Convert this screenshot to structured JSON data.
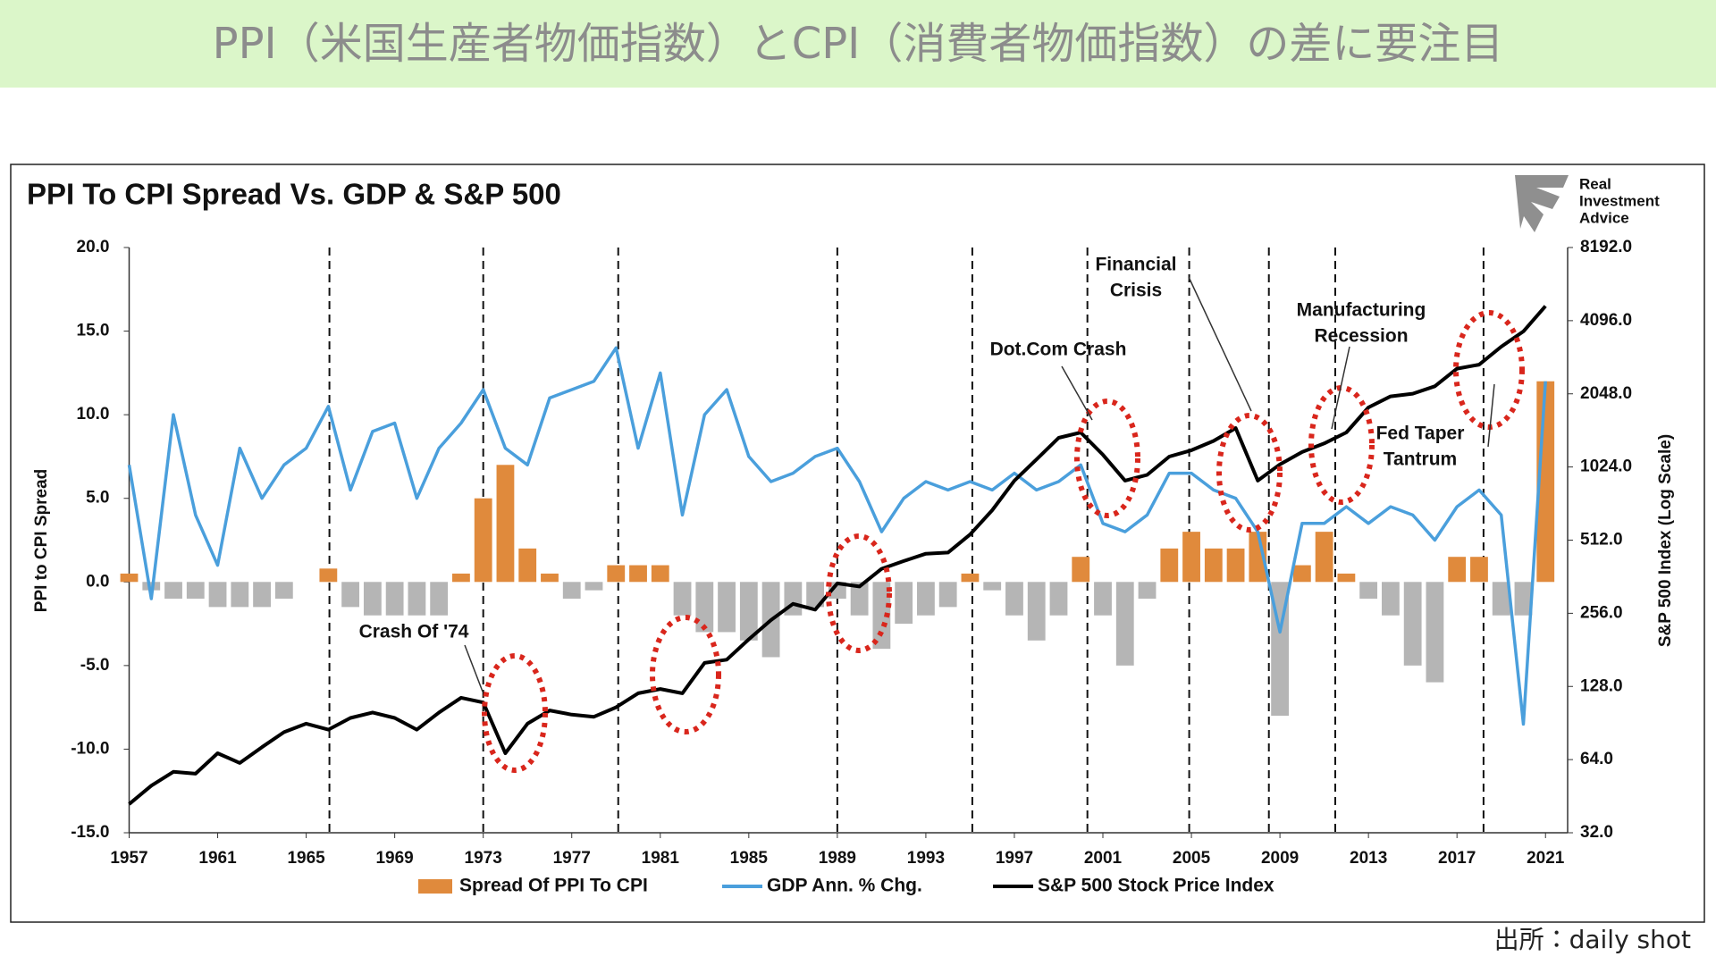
{
  "header": {
    "title": "PPI（米国生産者物価指数）とCPI（消費者物価指数）の差に要注目"
  },
  "source": "出所：daily shot",
  "logo": {
    "lines": [
      "Real",
      "Investment",
      "Advice"
    ]
  },
  "chart_data": {
    "type": "combo",
    "title": "PPI To CPI Spread Vs. GDP & S&P 500",
    "y_label": "PPI to CPI Spread",
    "y2_label": "S&P 500 Index (Log Scale)",
    "x": [
      1957,
      1958,
      1959,
      1960,
      1961,
      1962,
      1963,
      1964,
      1965,
      1966,
      1967,
      1968,
      1969,
      1970,
      1971,
      1972,
      1973,
      1974,
      1975,
      1976,
      1977,
      1978,
      1979,
      1980,
      1981,
      1982,
      1983,
      1984,
      1985,
      1986,
      1987,
      1988,
      1989,
      1990,
      1991,
      1992,
      1993,
      1994,
      1995,
      1996,
      1997,
      1998,
      1999,
      2000,
      2001,
      2002,
      2003,
      2004,
      2005,
      2006,
      2007,
      2008,
      2009,
      2010,
      2011,
      2012,
      2013,
      2014,
      2015,
      2016,
      2017,
      2018,
      2019,
      2020,
      2021
    ],
    "series": [
      {
        "name": "Spread Of PPI To CPI",
        "kind": "bar",
        "color": "#e08a3c",
        "negative_color": "#b5b5b5",
        "values": [
          0.5,
          -0.5,
          -1,
          -1,
          -1.5,
          -1.5,
          -1.5,
          -1,
          0,
          0.8,
          -1.5,
          -2,
          -2,
          -2,
          -2,
          0.5,
          5,
          7,
          2,
          0.5,
          -1,
          -0.5,
          1,
          1,
          1,
          -2,
          -3,
          -3,
          -3.5,
          -4.5,
          -2,
          -1.5,
          -1,
          -2,
          -4,
          -2.5,
          -2,
          -1.5,
          0.5,
          -0.5,
          -2,
          -3.5,
          -2,
          1.5,
          -2,
          -5,
          -1,
          2,
          3,
          2,
          2,
          3,
          -8,
          1,
          3,
          0.5,
          -1,
          -2,
          -5,
          -6,
          1.5,
          1.5,
          -2,
          -2,
          12
        ]
      },
      {
        "name": "GDP Ann. % Chg.",
        "kind": "line",
        "color": "#4a9fdc",
        "values": [
          7,
          -1,
          10,
          4,
          1,
          8,
          5,
          7,
          8,
          10.5,
          5.5,
          9,
          9.5,
          5,
          8,
          9.5,
          11.5,
          8,
          7,
          11,
          11.5,
          12,
          14,
          8,
          12.5,
          4,
          10,
          11.5,
          7.5,
          6,
          6.5,
          7.5,
          8,
          6,
          3,
          5,
          6,
          5.5,
          6,
          5.5,
          6.5,
          5.5,
          6,
          7,
          3.5,
          3,
          4,
          6.5,
          6.5,
          5.5,
          5,
          3,
          -3,
          3.5,
          3.5,
          4.5,
          3.5,
          4.5,
          4,
          2.5,
          4.5,
          5.5,
          4,
          -8.5,
          12
        ]
      },
      {
        "name": "S&P 500 Stock Price Index",
        "kind": "line",
        "axis": "y2",
        "color": "#000000",
        "values": [
          42,
          50,
          57,
          56,
          68,
          62,
          72,
          83,
          90,
          85,
          95,
          100,
          95,
          85,
          100,
          115,
          110,
          68,
          90,
          102,
          98,
          96,
          105,
          120,
          125,
          120,
          160,
          165,
          200,
          240,
          280,
          265,
          340,
          330,
          390,
          420,
          450,
          455,
          540,
          680,
          900,
          1100,
          1350,
          1420,
          1150,
          900,
          950,
          1130,
          1200,
          1310,
          1480,
          900,
          1050,
          1180,
          1280,
          1420,
          1800,
          2000,
          2050,
          2200,
          2600,
          2700,
          3200,
          3700,
          4700
        ]
      }
    ],
    "xlim": [
      1957,
      2022
    ],
    "xticks": [
      1957,
      1961,
      1965,
      1969,
      1973,
      1977,
      1981,
      1985,
      1989,
      1993,
      1997,
      2001,
      2005,
      2009,
      2013,
      2017,
      2021
    ],
    "ylim": [
      -15,
      20
    ],
    "yticks": [
      {
        "value": -15,
        "label": "-15.0"
      },
      {
        "value": -10,
        "label": "-10.0"
      },
      {
        "value": -5,
        "label": "-5.0"
      },
      {
        "value": 0,
        "label": "0.0"
      },
      {
        "value": 5,
        "label": "5.0"
      },
      {
        "value": 10,
        "label": "10.0"
      },
      {
        "value": 15,
        "label": "15.0"
      },
      {
        "value": 20,
        "label": "20.0"
      }
    ],
    "y2lim": [
      32,
      8192
    ],
    "y2_log": true,
    "y2ticks": [
      {
        "value": 32,
        "label": "32.0"
      },
      {
        "value": 64,
        "label": "64.0"
      },
      {
        "value": 128,
        "label": "128.0"
      },
      {
        "value": 256,
        "label": "256.0"
      },
      {
        "value": 512,
        "label": "512.0"
      },
      {
        "value": 1024,
        "label": "1024.0"
      },
      {
        "value": 2048,
        "label": "2048.0"
      },
      {
        "value": 4096,
        "label": "4096.0"
      },
      {
        "value": 8192,
        "label": "8192.0"
      }
    ],
    "event_lines": [
      1966.05,
      1973,
      1979.1,
      1989,
      1995.1,
      2000.3,
      2004.9,
      2008.5,
      2011.5,
      2018.2
    ],
    "annotations": [
      {
        "lines": [
          "Crash Of '74"
        ]
      },
      {
        "lines": [
          "Dot.Com Crash"
        ]
      },
      {
        "lines": [
          "Financial",
          "Crisis"
        ]
      },
      {
        "lines": [
          "Manufacturing",
          "Recession"
        ]
      },
      {
        "lines": [
          "Fed Taper",
          "Tantrum"
        ]
      }
    ]
  }
}
